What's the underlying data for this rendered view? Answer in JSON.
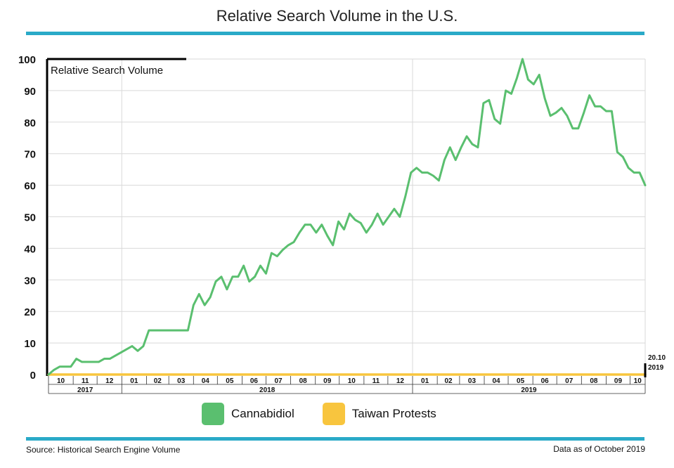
{
  "page": {
    "title": "Relative Search Volume in the U.S.",
    "source": "Source: Historical Search Engine Volume",
    "data_as_of": "Data as of October 2019",
    "accent_color": "#2aaac8"
  },
  "chart_data": {
    "type": "line",
    "title": "Relative Search Volume in the U.S.",
    "ylabel": "Relative Search Volume",
    "ylim": [
      0,
      100
    ],
    "yticks": [
      "0",
      "10",
      "20",
      "30",
      "40",
      "50",
      "60",
      "70",
      "80",
      "90",
      "100"
    ],
    "grid": true,
    "legend_position": "bottom",
    "x_start": "2017-10-01",
    "x_end": "2019-10-20",
    "months": [
      {
        "label": "10",
        "year": "2017"
      },
      {
        "label": "11",
        "year": "2017"
      },
      {
        "label": "12",
        "year": "2017"
      },
      {
        "label": "01",
        "year": "2018"
      },
      {
        "label": "02",
        "year": "2018"
      },
      {
        "label": "03",
        "year": "2018"
      },
      {
        "label": "04",
        "year": "2018"
      },
      {
        "label": "05",
        "year": "2018"
      },
      {
        "label": "06",
        "year": "2018"
      },
      {
        "label": "07",
        "year": "2018"
      },
      {
        "label": "08",
        "year": "2018"
      },
      {
        "label": "09",
        "year": "2018"
      },
      {
        "label": "10",
        "year": "2018"
      },
      {
        "label": "11",
        "year": "2018"
      },
      {
        "label": "12",
        "year": "2018"
      },
      {
        "label": "01",
        "year": "2019"
      },
      {
        "label": "02",
        "year": "2019"
      },
      {
        "label": "03",
        "year": "2019"
      },
      {
        "label": "04",
        "year": "2019"
      },
      {
        "label": "05",
        "year": "2019"
      },
      {
        "label": "06",
        "year": "2019"
      },
      {
        "label": "07",
        "year": "2019"
      },
      {
        "label": "08",
        "year": "2019"
      },
      {
        "label": "09",
        "year": "2019"
      },
      {
        "label": "10",
        "year": "2019"
      }
    ],
    "years": [
      "2017",
      "2018",
      "2019"
    ],
    "end_marker": {
      "date": "20.10",
      "year": "2019"
    },
    "series": [
      {
        "name": "Cannabidiol",
        "color": "#5abf6f",
        "points": [
          [
            "2017-10-01",
            0
          ],
          [
            "2017-10-08",
            1.5
          ],
          [
            "2017-10-15",
            2.5
          ],
          [
            "2017-10-22",
            2.5
          ],
          [
            "2017-10-29",
            2.5
          ],
          [
            "2017-11-05",
            5
          ],
          [
            "2017-11-12",
            4
          ],
          [
            "2017-11-19",
            4
          ],
          [
            "2017-11-26",
            4
          ],
          [
            "2017-12-03",
            4
          ],
          [
            "2017-12-10",
            5
          ],
          [
            "2017-12-17",
            5
          ],
          [
            "2017-12-24",
            6
          ],
          [
            "2017-12-31",
            7
          ],
          [
            "2018-01-07",
            8
          ],
          [
            "2018-01-14",
            9
          ],
          [
            "2018-01-21",
            7.5
          ],
          [
            "2018-01-28",
            9
          ],
          [
            "2018-02-04",
            14
          ],
          [
            "2018-02-11",
            14
          ],
          [
            "2018-02-18",
            14
          ],
          [
            "2018-02-25",
            14
          ],
          [
            "2018-03-04",
            14
          ],
          [
            "2018-03-11",
            14
          ],
          [
            "2018-03-18",
            14
          ],
          [
            "2018-03-25",
            14
          ],
          [
            "2018-04-01",
            22
          ],
          [
            "2018-04-08",
            25.5
          ],
          [
            "2018-04-15",
            22
          ],
          [
            "2018-04-22",
            24.5
          ],
          [
            "2018-04-29",
            29.5
          ],
          [
            "2018-05-06",
            31
          ],
          [
            "2018-05-13",
            27
          ],
          [
            "2018-05-20",
            31
          ],
          [
            "2018-05-27",
            31
          ],
          [
            "2018-06-03",
            34.5
          ],
          [
            "2018-06-10",
            29.5
          ],
          [
            "2018-06-17",
            31
          ],
          [
            "2018-06-24",
            34.5
          ],
          [
            "2018-07-01",
            32
          ],
          [
            "2018-07-08",
            38.5
          ],
          [
            "2018-07-15",
            37.5
          ],
          [
            "2018-07-22",
            39.5
          ],
          [
            "2018-07-29",
            41
          ],
          [
            "2018-08-05",
            42
          ],
          [
            "2018-08-12",
            45
          ],
          [
            "2018-08-19",
            47.5
          ],
          [
            "2018-08-26",
            47.5
          ],
          [
            "2018-09-02",
            45
          ],
          [
            "2018-09-09",
            47.5
          ],
          [
            "2018-09-16",
            44
          ],
          [
            "2018-09-23",
            41
          ],
          [
            "2018-09-30",
            48.5
          ],
          [
            "2018-10-07",
            46
          ],
          [
            "2018-10-14",
            51
          ],
          [
            "2018-10-21",
            49
          ],
          [
            "2018-10-28",
            48
          ],
          [
            "2018-11-04",
            45
          ],
          [
            "2018-11-11",
            47.5
          ],
          [
            "2018-11-18",
            51
          ],
          [
            "2018-11-25",
            47.5
          ],
          [
            "2018-12-02",
            50
          ],
          [
            "2018-12-09",
            52.5
          ],
          [
            "2018-12-16",
            50
          ],
          [
            "2018-12-23",
            56.5
          ],
          [
            "2018-12-30",
            64
          ],
          [
            "2019-01-06",
            65.5
          ],
          [
            "2019-01-13",
            64
          ],
          [
            "2019-01-20",
            64
          ],
          [
            "2019-01-27",
            63
          ],
          [
            "2019-02-03",
            61.5
          ],
          [
            "2019-02-10",
            68
          ],
          [
            "2019-02-17",
            72
          ],
          [
            "2019-02-24",
            68
          ],
          [
            "2019-03-03",
            72
          ],
          [
            "2019-03-10",
            75.5
          ],
          [
            "2019-03-17",
            73
          ],
          [
            "2019-03-24",
            72
          ],
          [
            "2019-03-31",
            86
          ],
          [
            "2019-04-07",
            87
          ],
          [
            "2019-04-14",
            81
          ],
          [
            "2019-04-21",
            79.5
          ],
          [
            "2019-04-28",
            90
          ],
          [
            "2019-05-05",
            89
          ],
          [
            "2019-05-12",
            94
          ],
          [
            "2019-05-19",
            100
          ],
          [
            "2019-05-26",
            93.5
          ],
          [
            "2019-06-02",
            92
          ],
          [
            "2019-06-09",
            95
          ],
          [
            "2019-06-16",
            87.5
          ],
          [
            "2019-06-23",
            82
          ],
          [
            "2019-06-30",
            83
          ],
          [
            "2019-07-07",
            84.5
          ],
          [
            "2019-07-14",
            82
          ],
          [
            "2019-07-21",
            78
          ],
          [
            "2019-07-28",
            78
          ],
          [
            "2019-08-04",
            83
          ],
          [
            "2019-08-11",
            88.5
          ],
          [
            "2019-08-18",
            85
          ],
          [
            "2019-08-25",
            85
          ],
          [
            "2019-09-01",
            83.5
          ],
          [
            "2019-09-08",
            83.5
          ],
          [
            "2019-09-15",
            70.5
          ],
          [
            "2019-09-22",
            69
          ],
          [
            "2019-09-29",
            65.5
          ],
          [
            "2019-10-06",
            64
          ],
          [
            "2019-10-13",
            64
          ],
          [
            "2019-10-20",
            60
          ]
        ]
      },
      {
        "name": "Taiwan Protests",
        "color": "#f8c53e",
        "points": [
          [
            "2017-10-01",
            0
          ],
          [
            "2019-10-20",
            0
          ]
        ]
      }
    ]
  }
}
